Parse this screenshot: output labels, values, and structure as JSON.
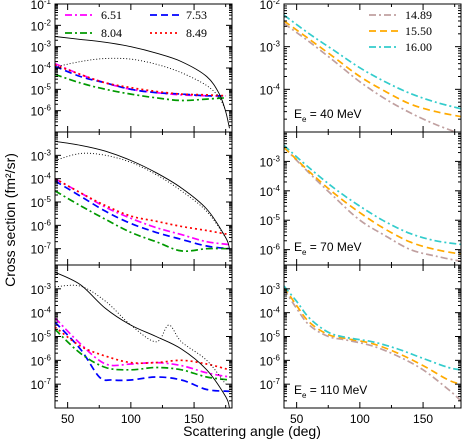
{
  "figure": {
    "xlabel": "Scattering angle (deg)",
    "ylabel": "Cross section (fm²/sr)"
  },
  "chart_data": [
    {
      "type": "line",
      "panel": "left-top",
      "log_y": true,
      "xlim": [
        40,
        180
      ],
      "ylim": [
        1e-07,
        0.1
      ],
      "xticks": [
        50,
        100,
        150
      ],
      "show_xticklabels": false,
      "yticks": [
        {
          "v": 1e-06,
          "l": "10-6"
        },
        {
          "v": 1e-05,
          "l": "10-5"
        },
        {
          "v": 0.0001,
          "l": "10-4"
        },
        {
          "v": 0.001,
          "l": "10-3"
        },
        {
          "v": 0.01,
          "l": "10-2"
        },
        {
          "v": 0.1,
          "l": "10-1"
        }
      ],
      "legend": {
        "position": "top",
        "columns": 2,
        "series": [
          0,
          1,
          2,
          3
        ]
      },
      "series": [
        {
          "name": "6.51",
          "color": "#ff00ff",
          "dash": "dashdot",
          "x": [
            40,
            60,
            80,
            100,
            120,
            140,
            160,
            175
          ],
          "y": [
            0.00016,
            5e-05,
            2e-05,
            1e-05,
            7e-06,
            5.5e-06,
            5e-06,
            5e-06
          ]
        },
        {
          "name": "7.53",
          "color": "#0000ff",
          "dash": "dash",
          "x": [
            40,
            60,
            80,
            100,
            120,
            140,
            160,
            175
          ],
          "y": [
            0.00012,
            4e-05,
            2e-05,
            1e-05,
            7e-06,
            6e-06,
            5e-06,
            5e-06
          ]
        },
        {
          "name": "8.04",
          "color": "#009900",
          "dash": "dashdot",
          "x": [
            40,
            60,
            80,
            100,
            120,
            140,
            160,
            175
          ],
          "y": [
            5e-05,
            2e-05,
            1e-05,
            6e-06,
            4e-06,
            3e-06,
            3.5e-06,
            4e-06
          ]
        },
        {
          "name": "8.49",
          "color": "#ff0000",
          "dash": "dot",
          "x": [
            40,
            60,
            80,
            100,
            120,
            140,
            160,
            175
          ],
          "y": [
            0.00014,
            5e-05,
            2e-05,
            1.2e-05,
            8e-06,
            6e-06,
            5.5e-06,
            5e-06
          ]
        },
        {
          "name": "",
          "color": "#000000",
          "dash": "solid",
          "x": [
            40,
            60,
            80,
            100,
            120,
            140,
            160,
            170,
            175,
            178
          ],
          "y": [
            0.003,
            0.0022,
            0.0016,
            0.001,
            0.0005,
            0.0002,
            4e-05,
            6e-06,
            9e-07,
            1.5e-07
          ]
        },
        {
          "name": "",
          "color": "#000000",
          "dash": "fine-dot",
          "x": [
            40,
            60,
            80,
            100,
            120,
            140,
            160,
            170,
            175
          ],
          "y": [
            0.00011,
            0.0002,
            0.00028,
            0.00026,
            0.00015,
            6e-05,
            1.5e-05,
            4e-06,
            1e-06
          ]
        }
      ]
    },
    {
      "type": "line",
      "panel": "right-top",
      "log_y": true,
      "xlim": [
        40,
        180
      ],
      "ylim": [
        1e-05,
        0.01
      ],
      "xticks": [
        50,
        100,
        150
      ],
      "show_xticklabels": false,
      "yticks": [
        {
          "v": 0.0001,
          "l": "10-4"
        },
        {
          "v": 0.001,
          "l": "10-3"
        },
        {
          "v": 0.01,
          "l": "10-2"
        }
      ],
      "legend": {
        "position": "top-right",
        "columns": 1,
        "series": [
          0,
          1,
          2
        ]
      },
      "annotation": {
        "main": "E",
        "sub": "e",
        "rest": " = 40 MeV"
      },
      "series": [
        {
          "name": "14.89",
          "color": "#c0a0a0",
          "dash": "dashdot",
          "x": [
            40,
            60,
            80,
            100,
            120,
            140,
            160,
            180
          ],
          "y": [
            0.0035,
            0.0013,
            0.00045,
            0.00015,
            6e-05,
            2.8e-05,
            1.5e-05,
            9e-06
          ]
        },
        {
          "name": "15.50",
          "color": "#ffaa00",
          "dash": "dash",
          "x": [
            40,
            60,
            80,
            100,
            120,
            140,
            160,
            180
          ],
          "y": [
            0.004,
            0.0015,
            0.00055,
            0.0002,
            9e-05,
            4.5e-05,
            3e-05,
            2.3e-05
          ]
        },
        {
          "name": "16.00",
          "color": "#33cccc",
          "dash": "dashdot",
          "x": [
            40,
            60,
            80,
            100,
            120,
            140,
            160,
            180
          ],
          "y": [
            0.0055,
            0.002,
            0.0008,
            0.00032,
            0.00015,
            8e-05,
            5e-05,
            3.5e-05
          ]
        }
      ]
    },
    {
      "type": "line",
      "panel": "left-middle",
      "log_y": true,
      "xlim": [
        40,
        180
      ],
      "ylim": [
        2e-08,
        0.01
      ],
      "xticks": [
        50,
        100,
        150
      ],
      "show_xticklabels": false,
      "yticks": [
        {
          "v": 1e-07,
          "l": "10-7"
        },
        {
          "v": 1e-06,
          "l": "10-6"
        },
        {
          "v": 1e-05,
          "l": "10-5"
        },
        {
          "v": 0.0001,
          "l": "10-4"
        },
        {
          "v": 0.001,
          "l": "10-3"
        }
      ],
      "series": [
        {
          "name": "6.51",
          "color": "#ff00ff",
          "dash": "dashdot",
          "x": [
            40,
            60,
            80,
            100,
            120,
            140,
            160,
            178
          ],
          "y": [
            0.0001,
            2.5e-05,
            6e-06,
            2e-06,
            8e-07,
            4e-07,
            2e-07,
            1.5e-07
          ]
        },
        {
          "name": "7.53",
          "color": "#0000ff",
          "dash": "dash",
          "x": [
            40,
            60,
            80,
            100,
            120,
            140,
            160,
            178
          ],
          "y": [
            8e-05,
            1.8e-05,
            4e-06,
            1.2e-06,
            5e-07,
            2.5e-07,
            1.3e-07,
            1e-07
          ]
        },
        {
          "name": "8.04",
          "color": "#009900",
          "dash": "dashdot",
          "x": [
            40,
            60,
            80,
            100,
            120,
            140,
            160,
            178
          ],
          "y": [
            3e-05,
            7e-06,
            1.8e-06,
            5e-07,
            2e-07,
            8e-08,
            1e-07,
            1e-07
          ]
        },
        {
          "name": "8.49",
          "color": "#ff0000",
          "dash": "dot",
          "x": [
            40,
            60,
            80,
            100,
            120,
            140,
            160,
            178
          ],
          "y": [
            0.0001,
            2.5e-05,
            7e-06,
            2.5e-06,
            1.5e-06,
            9e-07,
            6e-07,
            4e-07
          ]
        },
        {
          "name": "",
          "color": "#000000",
          "dash": "solid",
          "x": [
            40,
            60,
            80,
            100,
            120,
            140,
            160,
            175,
            178
          ],
          "y": [
            0.004,
            0.0027,
            0.0015,
            0.0006,
            0.00018,
            4e-05,
            5e-06,
            3e-07,
            1e-07
          ]
        },
        {
          "name": "",
          "color": "#000000",
          "dash": "fine-dot",
          "x": [
            40,
            60,
            80,
            100,
            120,
            140,
            160,
            175
          ],
          "y": [
            0.0006,
            0.0012,
            0.001,
            0.0005,
            0.00015,
            3e-05,
            4e-06,
            3e-07
          ]
        }
      ]
    },
    {
      "type": "line",
      "panel": "right-middle",
      "log_y": true,
      "xlim": [
        40,
        180
      ],
      "ylim": [
        3e-07,
        0.01
      ],
      "xticks": [
        50,
        100,
        150
      ],
      "show_xticklabels": false,
      "yticks": [
        {
          "v": 1e-06,
          "l": "10-6"
        },
        {
          "v": 1e-05,
          "l": "10-5"
        },
        {
          "v": 0.0001,
          "l": "10-4"
        },
        {
          "v": 0.001,
          "l": "10-3"
        }
      ],
      "annotation": {
        "main": "E",
        "sub": "e",
        "rest": " = 70 MeV"
      },
      "series": [
        {
          "name": "14.89",
          "color": "#c0a0a0",
          "dash": "dashdot",
          "x": [
            40,
            60,
            80,
            100,
            120,
            140,
            160,
            180
          ],
          "y": [
            0.003,
            0.0004,
            6e-05,
            1e-05,
            3e-06,
            1e-06,
            6e-07,
            4e-07
          ]
        },
        {
          "name": "15.50",
          "color": "#ffaa00",
          "dash": "dash",
          "x": [
            40,
            60,
            80,
            100,
            120,
            140,
            160,
            180
          ],
          "y": [
            0.003,
            0.00045,
            8e-05,
            1.8e-05,
            5e-06,
            1.8e-06,
            1e-06,
            7e-07
          ]
        },
        {
          "name": "16.00",
          "color": "#33cccc",
          "dash": "dashdot",
          "x": [
            40,
            60,
            80,
            100,
            120,
            140,
            160,
            180
          ],
          "y": [
            0.0035,
            0.0006,
            0.00012,
            3e-05,
            9e-06,
            3.5e-06,
            2e-06,
            1.5e-06
          ]
        }
      ]
    },
    {
      "type": "line",
      "panel": "left-bottom",
      "log_y": true,
      "xlim": [
        40,
        180
      ],
      "ylim": [
        1e-08,
        0.01
      ],
      "xticks": [
        50,
        100,
        150
      ],
      "show_xticklabels": true,
      "yticks": [
        {
          "v": 1e-07,
          "l": "10-7"
        },
        {
          "v": 1e-06,
          "l": "10-6"
        },
        {
          "v": 1e-05,
          "l": "10-5"
        },
        {
          "v": 0.0001,
          "l": "10-4"
        },
        {
          "v": 0.001,
          "l": "10-3"
        }
      ],
      "series": [
        {
          "name": "6.51",
          "color": "#ff00ff",
          "dash": "dashdot",
          "x": [
            40,
            60,
            80,
            100,
            120,
            140,
            160,
            178
          ],
          "y": [
            6e-05,
            5e-06,
            7e-07,
            7e-07,
            8e-07,
            6e-07,
            3e-07,
            2e-07
          ]
        },
        {
          "name": "7.53",
          "color": "#0000ff",
          "dash": "dash",
          "x": [
            40,
            60,
            75,
            85,
            100,
            120,
            140,
            160,
            178
          ],
          "y": [
            4e-05,
            3e-06,
            2e-07,
            1.5e-07,
            1.5e-07,
            2e-07,
            1.5e-07,
            6e-08,
            5e-08
          ]
        },
        {
          "name": "8.04",
          "color": "#009900",
          "dash": "dashdot",
          "x": [
            40,
            60,
            80,
            100,
            120,
            140,
            160,
            178
          ],
          "y": [
            2e-05,
            2e-06,
            5e-07,
            4e-07,
            5e-07,
            4e-07,
            2e-07,
            1.5e-07
          ]
        },
        {
          "name": "8.49",
          "color": "#ff0000",
          "dash": "dot",
          "x": [
            40,
            60,
            80,
            100,
            120,
            140,
            160,
            178
          ],
          "y": [
            2.5e-05,
            4e-06,
            1.5e-06,
            8e-07,
            8e-07,
            1e-06,
            7e-07,
            4e-07
          ]
        },
        {
          "name": "",
          "color": "#000000",
          "dash": "solid",
          "x": [
            40,
            60,
            80,
            100,
            120,
            140,
            160,
            175,
            178
          ],
          "y": [
            0.005,
            0.0015,
            0.00015,
            3e-05,
            1e-05,
            3e-06,
            4e-07,
            3e-08,
            1e-08
          ]
        },
        {
          "name": "",
          "color": "#000000",
          "dash": "fine-dot",
          "x": [
            40,
            60,
            80,
            100,
            120,
            130,
            140,
            160,
            175
          ],
          "y": [
            0.0012,
            0.0013,
            0.0003,
            3e-05,
            6e-06,
            3e-05,
            6e-06,
            1e-06,
            1e-07
          ]
        }
      ]
    },
    {
      "type": "line",
      "panel": "right-bottom",
      "log_y": true,
      "xlim": [
        40,
        180
      ],
      "ylim": [
        1e-08,
        0.01
      ],
      "xticks": [
        50,
        100,
        150
      ],
      "show_xticklabels": true,
      "yticks": [
        {
          "v": 1e-07,
          "l": "10-7"
        },
        {
          "v": 1e-06,
          "l": "10-6"
        },
        {
          "v": 1e-05,
          "l": "10-5"
        },
        {
          "v": 0.0001,
          "l": "10-4"
        },
        {
          "v": 0.001,
          "l": "10-3"
        }
      ],
      "annotation": {
        "main": "E",
        "sub": "e",
        "rest": " = 110 MeV"
      },
      "series": [
        {
          "name": "14.89",
          "color": "#c0a0a0",
          "dash": "dashdot",
          "x": [
            40,
            50,
            60,
            75,
            90,
            110,
            130,
            150,
            170,
            180
          ],
          "y": [
            0.001,
            0.00015,
            3e-05,
            1e-05,
            7e-06,
            4e-06,
            1.5e-06,
            4e-07,
            6e-08,
            2e-08
          ]
        },
        {
          "name": "15.50",
          "color": "#ffaa00",
          "dash": "dash",
          "x": [
            40,
            50,
            60,
            75,
            90,
            110,
            130,
            150,
            170,
            180
          ],
          "y": [
            0.0012,
            0.0002,
            4e-05,
            1.2e-05,
            8e-06,
            5e-06,
            2e-06,
            6e-07,
            1.5e-07,
            1e-07
          ]
        },
        {
          "name": "16.00",
          "color": "#33cccc",
          "dash": "dashdot",
          "x": [
            40,
            50,
            60,
            75,
            90,
            110,
            130,
            150,
            170,
            180
          ],
          "y": [
            0.0013,
            0.0003,
            6e-05,
            1.5e-05,
            9e-06,
            6e-06,
            3e-06,
            1.2e-06,
            5e-07,
            4e-07
          ]
        }
      ]
    }
  ]
}
